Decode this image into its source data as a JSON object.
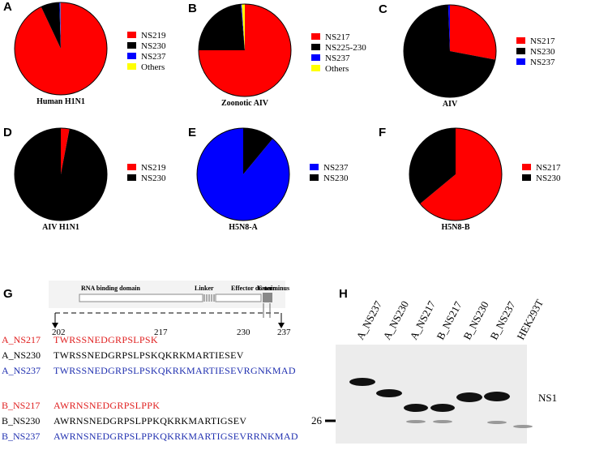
{
  "chart_data": [
    {
      "type": "pie",
      "panel": "A",
      "title": "Human H1N1",
      "categories": [
        "NS219",
        "NS230",
        "NS237",
        "Others"
      ],
      "values": [
        93,
        6.5,
        0.4,
        0.1
      ],
      "colors": [
        "#ff0000",
        "#000000",
        "#0000ff",
        "#ffff00"
      ]
    },
    {
      "type": "pie",
      "panel": "B",
      "title": "Zoonotic  AIV",
      "categories": [
        "NS217",
        "NS225-230",
        "NS237",
        "Others"
      ],
      "values": [
        75,
        23.6,
        0.3,
        1.1
      ],
      "colors": [
        "#ff0000",
        "#000000",
        "#0000ff",
        "#ffff00"
      ]
    },
    {
      "type": "pie",
      "panel": "C",
      "title": "AIV",
      "categories": [
        "NS217",
        "NS230",
        "NS237"
      ],
      "values": [
        28,
        71.4,
        0.6
      ],
      "colors": [
        "#ff0000",
        "#000000",
        "#0000ff"
      ]
    },
    {
      "type": "pie",
      "panel": "D",
      "title": "AIV H1N1",
      "categories": [
        "NS219",
        "NS230"
      ],
      "values": [
        3,
        97
      ],
      "colors": [
        "#ff0000",
        "#000000"
      ]
    },
    {
      "type": "pie",
      "panel": "E",
      "title": "H5N8-A",
      "categories": [
        "NS237",
        "NS230"
      ],
      "values": [
        89,
        11
      ],
      "colors": [
        "#0000ff",
        "#000000"
      ],
      "counterclock": true
    },
    {
      "type": "pie",
      "panel": "F",
      "title": "H5N8-B",
      "categories": [
        "NS217",
        "NS230"
      ],
      "values": [
        64,
        36
      ],
      "colors": [
        "#ff0000",
        "#000000"
      ]
    }
  ],
  "sequence_panel": {
    "panel": "G",
    "domains": [
      "RNA binding domain",
      "Linker",
      "Effector domain",
      "C-terminus"
    ],
    "positions": [
      "202",
      "217",
      "230",
      "237"
    ],
    "rows": [
      {
        "name": "A_NS217",
        "sequence": "TWRSSNEDGRPSLPSK",
        "color": "#e02020"
      },
      {
        "name": "A_NS230",
        "sequence": "TWRSSNEDGRPSLPSKQKRKMARTIESEV",
        "color": "#000000"
      },
      {
        "name": "A_NS237",
        "sequence": "TWRSSNEDGRPSLPSKQKRKMARTIESEVRGNKMAD",
        "color": "#2030b0"
      },
      {
        "name": "B_NS217",
        "sequence": "AWRNSNEDGRPSLPPK",
        "color": "#e02020"
      },
      {
        "name": "B_NS230",
        "sequence": "AWRNSNEDGRPSLPPKQKRKMARTIGSEV",
        "color": "#000000"
      },
      {
        "name": "B_NS237",
        "sequence": "AWRNSNEDGRPSLPPKQKRKMARTIGSEVRRNKMAD",
        "color": "#2030b0"
      }
    ]
  },
  "blot_panel": {
    "panel": "H",
    "lanes": [
      "A_NS237",
      "A_NS230",
      "A_NS217",
      "B_NS217",
      "B_NS230",
      "B_NS237",
      "HEK293T"
    ],
    "marker": "26",
    "protein": "NS1"
  }
}
